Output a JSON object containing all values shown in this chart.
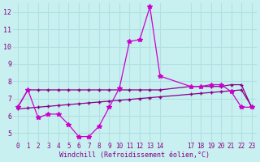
{
  "background_color": "#c8f0f0",
  "grid_color": "#b0e0e0",
  "line_color1": "#cc00cc",
  "line_color2": "#880088",
  "xlabel": "Windchill (Refroidissement éolien,°C)",
  "hours": [
    0,
    1,
    2,
    3,
    4,
    5,
    6,
    7,
    8,
    9,
    10,
    11,
    12,
    13,
    14,
    17,
    18,
    19,
    20,
    21,
    22,
    23
  ],
  "windchill": [
    6.5,
    7.5,
    5.9,
    6.1,
    6.1,
    5.5,
    4.8,
    4.8,
    5.4,
    6.5,
    7.6,
    10.3,
    10.4,
    12.3,
    8.3,
    7.7,
    7.7,
    7.8,
    7.8,
    7.4,
    6.5,
    6.5
  ],
  "ref_flat": [
    6.5,
    7.5,
    7.5,
    7.5,
    7.5,
    7.5,
    7.5,
    7.5,
    7.5,
    7.5,
    7.5,
    7.5,
    7.5,
    7.5,
    7.5,
    7.7,
    7.7,
    7.7,
    7.7,
    7.8,
    7.8,
    6.5
  ],
  "ref_linear": [
    6.4,
    6.45,
    6.5,
    6.55,
    6.6,
    6.65,
    6.7,
    6.75,
    6.8,
    6.85,
    6.9,
    6.95,
    7.0,
    7.05,
    7.1,
    7.25,
    7.3,
    7.35,
    7.4,
    7.45,
    7.5,
    6.55
  ],
  "ylim": [
    4.5,
    12.5
  ],
  "yticks": [
    5,
    6,
    7,
    8,
    9,
    10,
    11,
    12
  ],
  "xticks": [
    0,
    1,
    2,
    3,
    4,
    5,
    6,
    7,
    8,
    9,
    10,
    11,
    12,
    13,
    14,
    17,
    18,
    19,
    20,
    21,
    22,
    23
  ],
  "xtick_labels": [
    "0",
    "1",
    "2",
    "3",
    "4",
    "5",
    "6",
    "7",
    "8",
    "9",
    "10",
    "11",
    "12",
    "13",
    "14",
    "17",
    "18",
    "19",
    "20",
    "21",
    "22",
    "23"
  ]
}
